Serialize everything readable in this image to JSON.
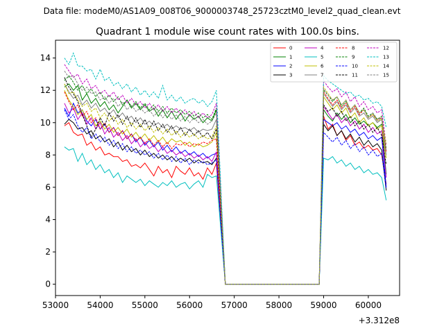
{
  "figure": {
    "suptitle": "Data file: modeM0/AS1A09_008T06_9000003748_25723cztM0_level2_quad_clean.evt"
  },
  "chart_data": {
    "type": "line",
    "title": "Quadrant 1 module wise count rates with 100.0s bins.",
    "xlabel": "",
    "ylabel": "",
    "x_offset_label": "+3.312e8",
    "xlim": [
      53000,
      60700
    ],
    "ylim": [
      -0.7,
      15.1
    ],
    "x_ticks": [
      53000,
      54000,
      55000,
      56000,
      57000,
      58000,
      59000,
      60000
    ],
    "x_tick_labels": [
      "53000",
      "54000",
      "55000",
      "56000",
      "57000",
      "58000",
      "59000",
      "60000"
    ],
    "y_ticks": [
      0,
      2,
      4,
      6,
      8,
      10,
      12,
      14
    ],
    "y_tick_labels": [
      "0",
      "2",
      "4",
      "6",
      "8",
      "10",
      "12",
      "14"
    ],
    "grid": false,
    "legend_position": "top-right",
    "x_segments": {
      "seg1": {
        "start": 53200,
        "end": 56600,
        "step": 100
      },
      "gap": [
        56800,
        56900,
        57000,
        57100,
        57200,
        57300,
        57400,
        57500,
        57600,
        57700,
        57800,
        57900,
        58000,
        58100,
        58200,
        58300,
        58400,
        58500,
        58600,
        58700,
        58800,
        58900
      ],
      "seg2": {
        "start": 59000,
        "end": 60400,
        "step": 100
      }
    },
    "series": [
      {
        "name": "0",
        "color": "#ff0000",
        "dash": "solid",
        "v1": [
          9.8,
          10.0,
          9.4,
          9.2,
          9.3,
          8.6,
          8.8,
          8.3,
          8.5,
          8.0,
          8.1,
          7.9,
          7.9,
          7.6,
          7.7,
          7.3,
          7.4,
          7.2,
          7.5,
          7.1,
          6.7,
          7.3,
          6.9,
          7.1,
          6.6,
          7.3,
          7.0,
          6.8,
          7.2,
          6.7,
          6.9,
          6.5,
          7.2,
          6.8,
          7.5
        ],
        "v2": [
          10.4,
          9.6,
          9.9,
          9.2,
          9.5,
          8.9,
          9.2,
          8.6,
          8.8,
          8.4,
          8.6,
          8.3,
          8.4,
          8.0
        ],
        "end": 6.2
      },
      {
        "name": "1",
        "color": "#008000",
        "dash": "solid",
        "v1": [
          12.2,
          12.4,
          12.0,
          12.3,
          11.4,
          11.8,
          11.2,
          11.5,
          11.0,
          11.3,
          10.8,
          11.1,
          10.6,
          11.0,
          11.4,
          10.9,
          11.2,
          10.8,
          11.1,
          10.7,
          10.9,
          10.4,
          10.8,
          10.3,
          10.7,
          10.2,
          10.6,
          10.1,
          10.5,
          10.2,
          10.4,
          10.0,
          10.3,
          10.1,
          10.8
        ],
        "v2": [
          10.8,
          10.4,
          10.1,
          10.6,
          10.2,
          10.5,
          10.0,
          10.3,
          9.9,
          10.1,
          9.8,
          10.0,
          9.7,
          9.9
        ],
        "end": 6.8
      },
      {
        "name": "2",
        "color": "#0000ff",
        "dash": "solid",
        "v1": [
          10.9,
          10.4,
          11.2,
          10.6,
          10.8,
          10.1,
          9.8,
          10.2,
          9.6,
          9.9,
          9.4,
          9.7,
          9.2,
          9.5,
          9.0,
          9.3,
          8.8,
          9.1,
          8.6,
          8.9,
          8.5,
          8.8,
          8.3,
          8.6,
          8.2,
          8.5,
          8.1,
          8.3,
          8.0,
          8.2,
          7.9,
          8.1,
          7.8,
          8.0,
          8.1
        ],
        "v2": [
          10.2,
          10.0,
          9.8,
          10.0,
          9.6,
          9.8,
          9.4,
          9.6,
          9.2,
          9.4,
          9.0,
          9.2,
          8.9,
          9.1
        ],
        "end": 6.0
      },
      {
        "name": "3",
        "color": "#000000",
        "dash": "solid",
        "v1": [
          9.9,
          10.2,
          10.0,
          9.6,
          9.7,
          9.3,
          9.5,
          9.0,
          9.2,
          8.8,
          9.0,
          8.5,
          8.8,
          8.3,
          8.6,
          8.2,
          8.4,
          8.0,
          8.3,
          7.9,
          8.1,
          7.8,
          8.0,
          7.7,
          7.9,
          7.6,
          7.8,
          7.6,
          7.8,
          7.5,
          7.7,
          7.5,
          7.6,
          7.4,
          7.8
        ],
        "v2": [
          9.9,
          9.5,
          9.8,
          9.2,
          9.5,
          9.0,
          9.3,
          8.8,
          9.1,
          8.6,
          8.9,
          8.5,
          8.7,
          8.3
        ],
        "end": 5.8
      },
      {
        "name": "4",
        "color": "#bf00bf",
        "dash": "solid",
        "v1": [
          11.2,
          10.6,
          10.9,
          10.2,
          10.6,
          9.9,
          10.3,
          9.6,
          10.0,
          9.3,
          9.7,
          9.1,
          9.4,
          8.9,
          9.2,
          8.7,
          9.0,
          8.5,
          8.8,
          8.4,
          8.6,
          8.2,
          8.5,
          8.1,
          8.3,
          8.0,
          8.2,
          7.9,
          8.1,
          7.8,
          8.0,
          7.7,
          7.9,
          7.6,
          8.2
        ],
        "v2": [
          11.0,
          10.6,
          10.2,
          10.5,
          10.0,
          10.3,
          9.8,
          10.1,
          9.6,
          9.9,
          9.4,
          9.7,
          9.3,
          9.5
        ],
        "end": 6.6
      },
      {
        "name": "5",
        "color": "#00bfbf",
        "dash": "solid",
        "v1": [
          8.5,
          8.3,
          8.4,
          7.6,
          8.1,
          7.4,
          7.7,
          7.1,
          7.4,
          6.9,
          7.1,
          6.6,
          6.9,
          6.3,
          6.7,
          6.5,
          6.3,
          6.5,
          6.1,
          6.4,
          6.2,
          6.0,
          6.3,
          6.1,
          6.4,
          6.0,
          6.2,
          6.3,
          5.9,
          6.2,
          6.4,
          6.0,
          6.8,
          6.6,
          6.7
        ],
        "v2": [
          7.8,
          7.7,
          7.9,
          7.5,
          7.7,
          7.3,
          7.5,
          7.1,
          7.3,
          6.9,
          7.1,
          6.8,
          6.9,
          6.6
        ],
        "end": 5.2
      },
      {
        "name": "6",
        "color": "#bfbf00",
        "dash": "solid",
        "v1": [
          12.0,
          11.4,
          11.0,
          10.5,
          10.8,
          10.2,
          10.5,
          9.8,
          10.1,
          9.6,
          9.9,
          9.4,
          9.7,
          9.3,
          9.6,
          9.1,
          9.4,
          9.0,
          9.3,
          8.9,
          9.2,
          8.8,
          9.1,
          8.7,
          9.0,
          8.8,
          8.9,
          8.6,
          8.8,
          8.5,
          8.7,
          8.5,
          8.6,
          8.8,
          9.4
        ],
        "v2": [
          11.6,
          11.2,
          10.8,
          11.1,
          10.6,
          10.9,
          10.3,
          10.6,
          10.0,
          10.3,
          9.8,
          10.0,
          9.6,
          9.8
        ],
        "end": 7.8
      },
      {
        "name": "7",
        "color": "#808080",
        "dash": "solid",
        "v1": [
          12.4,
          11.9,
          11.5,
          11.7,
          11.1,
          11.4,
          10.9,
          11.2,
          10.7,
          10.9,
          10.5,
          10.8,
          10.3,
          10.6,
          10.2,
          10.4,
          10.0,
          10.3,
          9.9,
          10.1,
          9.8,
          10.0,
          9.7,
          9.9,
          9.6,
          9.8,
          9.6,
          9.7,
          9.5,
          9.7,
          9.4,
          9.6,
          9.5,
          9.6,
          10.2
        ],
        "v2": [
          11.8,
          11.4,
          11.0,
          11.3,
          10.8,
          11.1,
          10.6,
          10.9,
          10.4,
          10.6,
          10.2,
          10.4,
          10.0,
          10.2
        ],
        "end": 8.0
      },
      {
        "name": "8",
        "color": "#ff0000",
        "dash": "dashed",
        "v1": [
          11.9,
          11.3,
          10.8,
          11.1,
          10.4,
          10.7,
          10.0,
          10.3,
          9.6,
          10.0,
          9.4,
          9.7,
          9.2,
          9.5,
          9.0,
          9.3,
          8.9,
          9.1,
          8.7,
          9.0,
          8.6,
          8.9,
          8.5,
          8.8,
          8.4,
          8.7,
          8.6,
          8.8,
          8.5,
          8.7,
          8.6,
          8.8,
          8.7,
          8.9,
          9.0
        ],
        "v2": [
          11.9,
          11.5,
          11.1,
          11.4,
          10.9,
          11.2,
          10.7,
          11.0,
          10.5,
          10.8,
          10.3,
          10.5,
          10.2,
          10.3
        ],
        "end": 8.2
      },
      {
        "name": "9",
        "color": "#008000",
        "dash": "dashed",
        "v1": [
          12.6,
          12.9,
          12.5,
          12.0,
          12.3,
          11.8,
          12.1,
          11.6,
          11.9,
          11.4,
          11.7,
          11.3,
          11.6,
          11.1,
          11.4,
          11.0,
          11.3,
          10.9,
          11.2,
          10.8,
          11.1,
          10.7,
          11.0,
          10.6,
          10.9,
          10.6,
          10.8,
          10.5,
          10.7,
          10.4,
          10.6,
          10.3,
          10.5,
          10.2,
          10.9
        ],
        "v2": [
          12.0,
          11.7,
          11.3,
          11.6,
          11.0,
          11.3,
          10.8,
          11.1,
          10.6,
          10.9,
          10.4,
          10.6,
          10.2,
          10.4
        ],
        "end": 8.4
      },
      {
        "name": "10",
        "color": "#0000ff",
        "dash": "dashed",
        "v1": [
          10.8,
          10.2,
          10.5,
          9.8,
          9.4,
          9.7,
          9.0,
          9.3,
          8.8,
          9.1,
          8.6,
          8.9,
          8.4,
          8.7,
          8.2,
          8.5,
          8.1,
          8.3,
          8.0,
          8.2,
          7.8,
          8.1,
          7.7,
          8.0,
          7.6,
          7.9,
          7.5,
          7.8,
          7.4,
          7.7,
          7.5,
          7.6,
          7.4,
          7.5,
          7.7
        ],
        "v2": [
          9.4,
          9.1,
          8.8,
          9.1,
          8.6,
          8.9,
          8.4,
          8.7,
          8.2,
          8.5,
          8.0,
          8.3,
          7.9,
          8.1
        ],
        "end": 5.9
      },
      {
        "name": "11",
        "color": "#000000",
        "dash": "dashed",
        "v1": [
          12.8,
          12.2,
          11.8,
          11.3,
          10.5,
          9.8,
          9.1,
          9.6,
          10.3,
          9.8,
          10.6,
          10.1,
          10.5,
          9.9,
          10.4,
          9.8,
          10.3,
          9.7,
          10.2,
          9.6,
          10.1,
          9.5,
          9.9,
          9.4,
          9.8,
          9.3,
          9.7,
          9.2,
          9.6,
          9.2,
          9.5,
          9.1,
          9.4,
          9.0,
          9.6
        ],
        "v2": [
          11.1,
          10.7,
          10.9,
          10.4,
          10.7,
          10.1,
          10.4,
          9.8,
          10.1,
          9.6,
          9.9,
          9.4,
          9.7,
          9.2
        ],
        "end": 7.4
      },
      {
        "name": "12",
        "color": "#bf00bf",
        "dash": "dashed",
        "v1": [
          13.6,
          13.2,
          12.8,
          13.0,
          12.4,
          12.7,
          12.1,
          12.3,
          11.8,
          12.0,
          11.6,
          11.9,
          11.4,
          11.7,
          11.2,
          11.5,
          11.1,
          11.3,
          10.9,
          11.2,
          10.8,
          11.1,
          10.7,
          11.0,
          10.6,
          10.9,
          10.5,
          10.8,
          10.4,
          10.7,
          10.3,
          10.6,
          10.3,
          10.5,
          11.2
        ],
        "v2": [
          12.6,
          12.2,
          11.9,
          12.1,
          11.6,
          11.9,
          11.3,
          11.6,
          11.0,
          11.3,
          10.8,
          11.0,
          10.6,
          10.8
        ],
        "end": 8.6
      },
      {
        "name": "13",
        "color": "#00bfbf",
        "dash": "dashed",
        "v1": [
          14.0,
          13.6,
          14.3,
          13.5,
          13.5,
          13.2,
          13.3,
          12.7,
          13.3,
          12.6,
          12.8,
          12.3,
          12.5,
          12.1,
          12.4,
          11.9,
          12.2,
          11.7,
          12.0,
          11.6,
          11.9,
          11.5,
          12.3,
          11.4,
          11.7,
          11.3,
          11.6,
          11.2,
          11.4,
          11.5,
          11.2,
          11.4,
          11.0,
          11.3,
          12.0
        ],
        "v2": [
          12.9,
          12.6,
          12.4,
          12.2,
          12.0,
          11.8,
          11.9,
          11.6,
          11.7,
          11.4,
          11.5,
          11.2,
          11.3,
          11.0
        ],
        "end": 9.7
      },
      {
        "name": "14",
        "color": "#bfbf00",
        "dash": "dashed",
        "v1": [
          12.4,
          11.8,
          11.9,
          11.4,
          11.0,
          11.2,
          10.7,
          10.9,
          10.3,
          10.6,
          10.1,
          10.4,
          9.9,
          10.2,
          9.7,
          10.0,
          9.6,
          9.9,
          9.5,
          9.8,
          9.4,
          9.7,
          9.3,
          9.6,
          9.2,
          9.5,
          9.1,
          9.4,
          9.1,
          9.3,
          9.0,
          9.2,
          9.0,
          9.1,
          9.8
        ],
        "v2": [
          12.2,
          11.8,
          11.4,
          11.6,
          11.1,
          11.4,
          10.8,
          11.1,
          10.6,
          10.8,
          10.3,
          10.5,
          10.1,
          10.2
        ],
        "end": 8.7
      },
      {
        "name": "15",
        "color": "#808080",
        "dash": "dashed",
        "v1": [
          13.2,
          12.8,
          12.9,
          12.4,
          12.0,
          12.2,
          11.8,
          11.9,
          11.4,
          11.6,
          11.2,
          11.5,
          11.0,
          11.3,
          10.8,
          11.1,
          10.7,
          10.9,
          10.6,
          10.8,
          10.4,
          10.7,
          10.3,
          10.6,
          10.2,
          10.5,
          10.1,
          10.4,
          10.0,
          10.3,
          10.0,
          10.2,
          9.9,
          10.1,
          10.6
        ],
        "v2": [
          12.1,
          11.7,
          11.4,
          11.6,
          11.1,
          11.4,
          10.8,
          11.1,
          10.6,
          10.8,
          10.3,
          10.6,
          10.1,
          10.3
        ],
        "end": 8.3
      }
    ]
  }
}
